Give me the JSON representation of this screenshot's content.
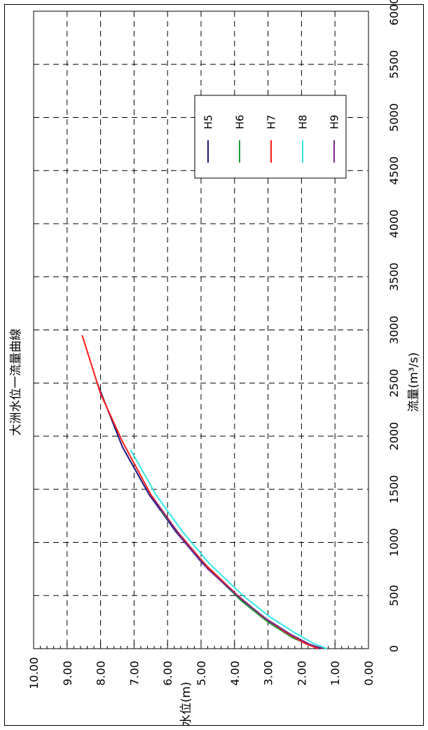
{
  "chart_data": {
    "type": "line",
    "orientation": "rotated-90-clockwise",
    "title": "大洲水位一流量曲線",
    "xlabel": "流量(m³/s)",
    "ylabel": "水位(m)",
    "xlim": [
      0,
      6000
    ],
    "ylim": [
      0.0,
      10.0
    ],
    "x_ticks": [
      "0",
      "500",
      "1000",
      "1500",
      "2000",
      "2500",
      "3000",
      "3500",
      "4000",
      "4500",
      "5000",
      "5500",
      "6000"
    ],
    "y_ticks": [
      "0.00",
      "1.00",
      "2.00",
      "3.00",
      "4.00",
      "5.00",
      "6.00",
      "7.00",
      "8.00",
      "9.00",
      "10.00"
    ],
    "grid": true,
    "legend_position": "upper-right",
    "series": [
      {
        "name": "H5",
        "color": "#1a1a80",
        "x": [
          0,
          50,
          150,
          300,
          500,
          800,
          1100,
          1450,
          1900,
          2500
        ],
        "y": [
          1.45,
          1.9,
          2.45,
          3.2,
          3.95,
          4.95,
          5.75,
          6.55,
          7.35,
          8.1
        ]
      },
      {
        "name": "H6",
        "color": "#1f9a3a",
        "x": [
          0,
          30,
          100,
          250,
          450,
          700,
          1000,
          1300
        ],
        "y": [
          1.3,
          1.7,
          2.25,
          3.0,
          3.8,
          4.6,
          5.45,
          6.2
        ]
      },
      {
        "name": "H7",
        "color": "#ff1a1a",
        "x": [
          0,
          50,
          150,
          300,
          500,
          800,
          1100,
          1450,
          1950,
          2400,
          2950
        ],
        "y": [
          1.5,
          1.9,
          2.45,
          3.15,
          3.9,
          4.9,
          5.7,
          6.5,
          7.35,
          8.0,
          8.55
        ]
      },
      {
        "name": "H8",
        "color": "#33e6e6",
        "x": [
          0,
          50,
          150,
          300,
          500,
          800,
          1100,
          1450,
          1870
        ],
        "y": [
          1.25,
          1.65,
          2.2,
          2.95,
          3.75,
          4.75,
          5.55,
          6.35,
          7.1
        ]
      },
      {
        "name": "H9",
        "color": "#7a2a8a",
        "x": [
          0,
          40,
          130,
          280,
          480,
          750,
          1050,
          1400
        ],
        "y": [
          1.35,
          1.75,
          2.3,
          3.05,
          3.85,
          4.8,
          5.6,
          6.4
        ]
      }
    ]
  }
}
